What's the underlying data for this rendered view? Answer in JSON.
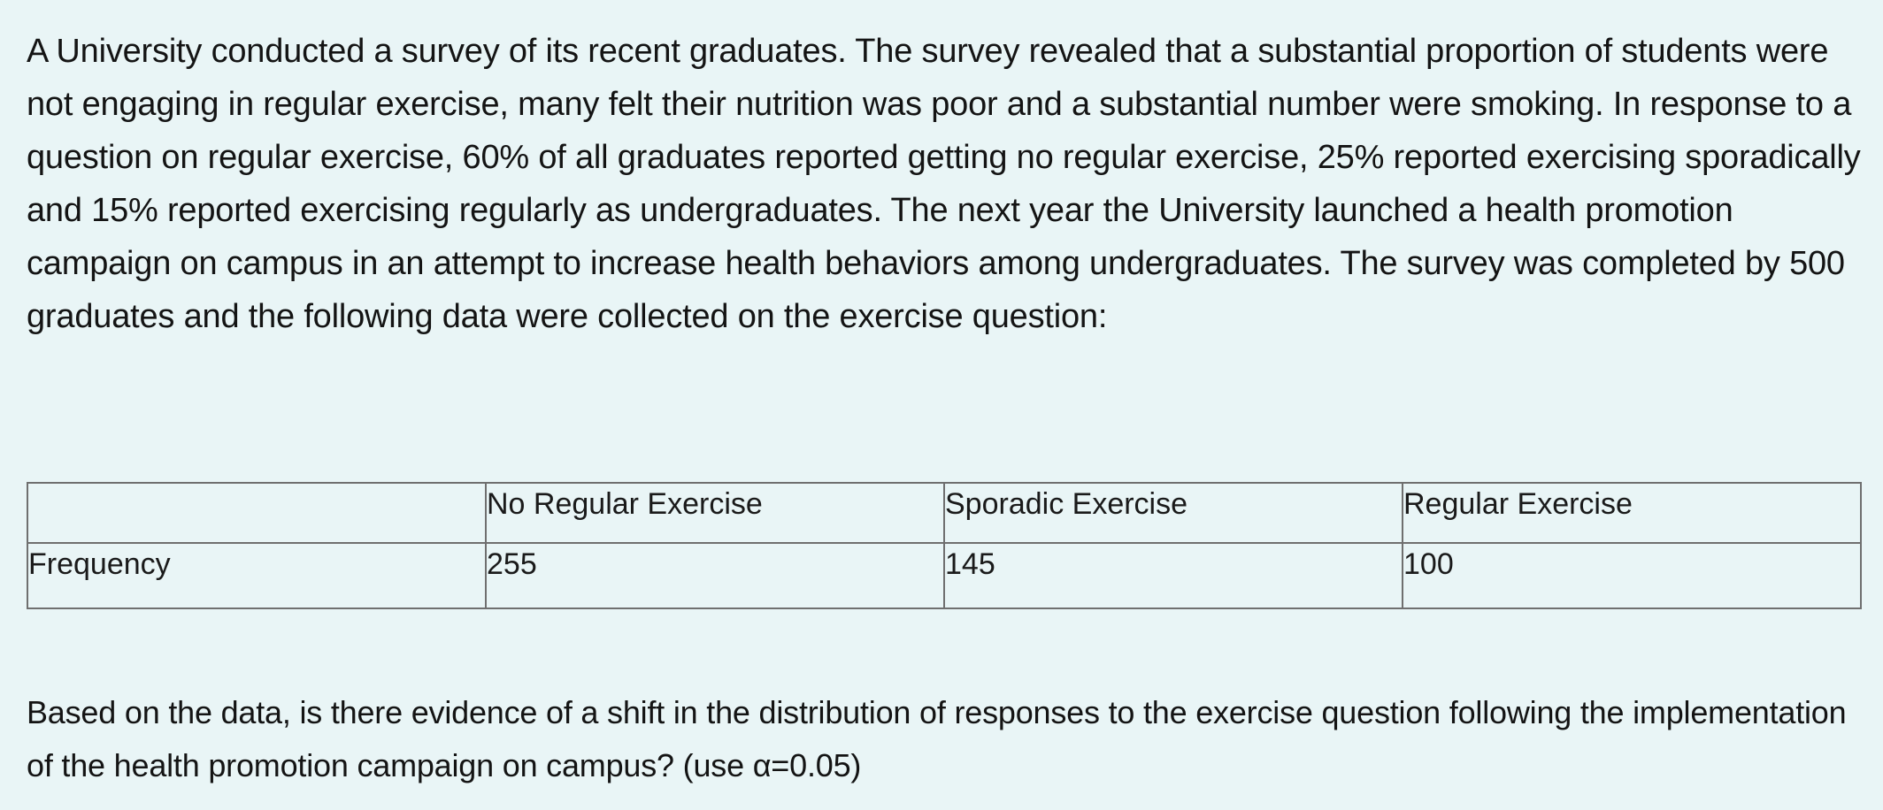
{
  "problem": {
    "intro": "A University conducted a survey of its recent graduates. The survey revealed that a substantial proportion of students were not engaging in regular exercise, many felt their nutrition was poor and a substantial number were smoking. In response to a question on regular exercise, 60% of all graduates reported getting no regular exercise, 25% reported exercising sporadically and 15% reported exercising regularly as undergraduates. The next year the University launched a health promotion campaign on campus in an attempt to increase health behaviors among undergraduates. The survey was completed by 500 graduates and the following data were collected on the exercise question:",
    "table": {
      "headers": [
        "",
        "No Regular Exercise",
        "Sporadic Exercise",
        "Regular Exercise"
      ],
      "rows": [
        [
          "Frequency",
          "255",
          "145",
          "100"
        ]
      ]
    },
    "question": "Based on the data, is there evidence of a shift in the distribution of responses to the exercise question following the implementation of the health promotion campaign on campus? (use α=0.05)"
  }
}
